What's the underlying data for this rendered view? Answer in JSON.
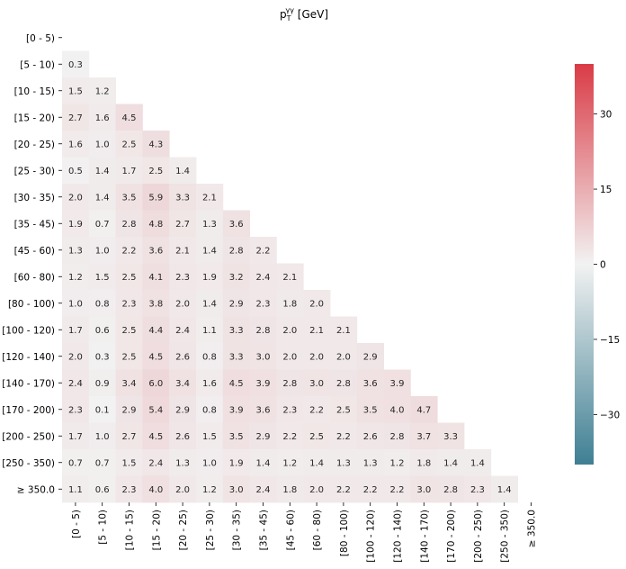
{
  "chart_data": {
    "type": "heatmap",
    "title": "p_T^γγ [GeV]",
    "title_main": "p",
    "title_sub": "T",
    "title_sup": "γγ",
    "title_unit": " [GeV]",
    "categories": [
      "[0 - 5)",
      "[5 - 10)",
      "[10 - 15)",
      "[15 - 20)",
      "[20 - 25)",
      "[25 - 30)",
      "[30 - 35)",
      "[35 - 45)",
      "[45 - 60)",
      "[60 - 80)",
      "[80 - 100)",
      "[100 - 120)",
      "[120 - 140)",
      "[140 - 170)",
      "[170 - 200)",
      "[200 - 250)",
      "[250 - 350)",
      "≥ 350.0"
    ],
    "values": [
      [
        null
      ],
      [
        0.3
      ],
      [
        1.5,
        1.2
      ],
      [
        2.7,
        1.6,
        4.5
      ],
      [
        1.6,
        1.0,
        2.5,
        4.3
      ],
      [
        0.5,
        1.4,
        1.7,
        2.5,
        1.4
      ],
      [
        2.0,
        1.4,
        3.5,
        5.9,
        3.3,
        2.1
      ],
      [
        1.9,
        0.7,
        2.8,
        4.8,
        2.7,
        1.3,
        3.6
      ],
      [
        1.3,
        1.0,
        2.2,
        3.6,
        2.1,
        1.4,
        2.8,
        2.2
      ],
      [
        1.2,
        1.5,
        2.5,
        4.1,
        2.3,
        1.9,
        3.2,
        2.4,
        2.1
      ],
      [
        1.0,
        0.8,
        2.3,
        3.8,
        2.0,
        1.4,
        2.9,
        2.3,
        1.8,
        2.0
      ],
      [
        1.7,
        0.6,
        2.5,
        4.4,
        2.4,
        1.1,
        3.3,
        2.8,
        2.0,
        2.1,
        2.1
      ],
      [
        2.0,
        0.3,
        2.5,
        4.5,
        2.6,
        0.8,
        3.3,
        3.0,
        2.0,
        2.0,
        2.0,
        2.9
      ],
      [
        2.4,
        0.9,
        3.4,
        6.0,
        3.4,
        1.6,
        4.5,
        3.9,
        2.8,
        3.0,
        2.8,
        3.6,
        3.9
      ],
      [
        2.3,
        0.1,
        2.9,
        5.4,
        2.9,
        0.8,
        3.9,
        3.6,
        2.3,
        2.2,
        2.5,
        3.5,
        4.0,
        4.7
      ],
      [
        1.7,
        1.0,
        2.7,
        4.5,
        2.6,
        1.5,
        3.5,
        2.9,
        2.2,
        2.5,
        2.2,
        2.6,
        2.8,
        3.7,
        3.3
      ],
      [
        0.7,
        0.7,
        1.5,
        2.4,
        1.3,
        1.0,
        1.9,
        1.4,
        1.2,
        1.4,
        1.3,
        1.3,
        1.2,
        1.8,
        1.4,
        1.4
      ],
      [
        1.1,
        0.6,
        2.3,
        4.0,
        2.0,
        1.2,
        3.0,
        2.4,
        1.8,
        2.0,
        2.2,
        2.2,
        2.2,
        3.0,
        2.8,
        2.3,
        1.4
      ]
    ],
    "colorbar": {
      "ticks": [
        30,
        15,
        0,
        -15,
        -30
      ],
      "tick_labels": [
        "30",
        "15",
        "0",
        "−15",
        "−30"
      ],
      "range": [
        -40,
        40
      ],
      "colors": {
        "negative": "#3f7f93",
        "center": "#f2f2f2",
        "positive": "#da3b46"
      }
    },
    "mask": "upper-triangle including diagonal",
    "grid": false
  }
}
